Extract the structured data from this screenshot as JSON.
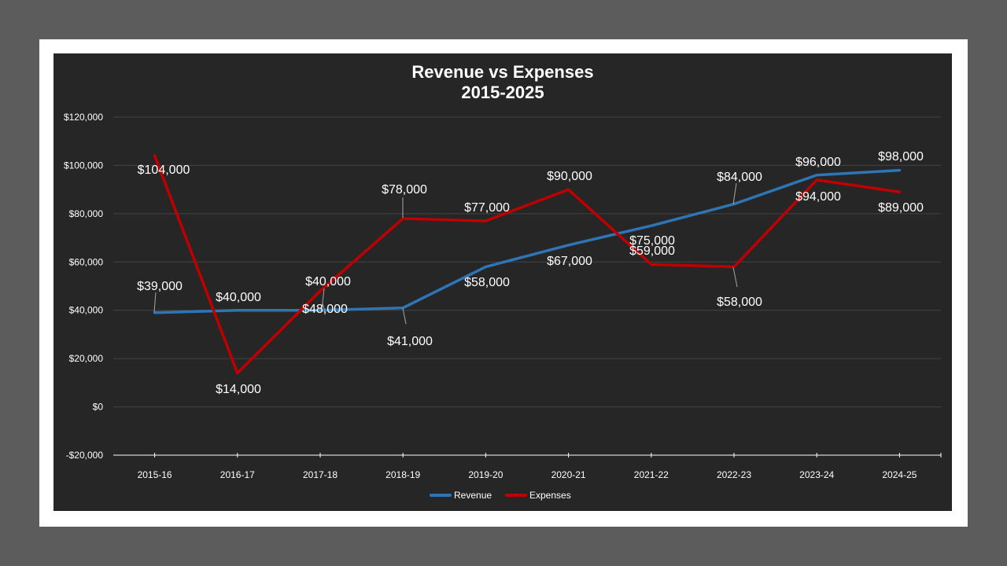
{
  "chart_data": {
    "type": "line",
    "title": "Revenue vs Expenses",
    "subtitle": "2015-2025",
    "xlabel": "",
    "ylabel": "",
    "categories": [
      "2015-16",
      "2016-17",
      "2017-18",
      "2018-19",
      "2019-20",
      "2020-21",
      "2021-22",
      "2022-23",
      "2023-24",
      "2024-25"
    ],
    "series": [
      {
        "name": "Revenue",
        "color": "#2e75b6",
        "values": [
          39000,
          40000,
          40000,
          41000,
          58000,
          67000,
          75000,
          84000,
          96000,
          98000
        ],
        "labels": [
          "$39,000",
          "$40,000",
          "$40,000",
          "$41,000",
          "$58,000",
          "$67,000",
          "$75,000",
          "$84,000",
          "$96,000",
          "$98,000"
        ]
      },
      {
        "name": "Expenses",
        "color": "#c00000",
        "values": [
          104000,
          14000,
          48000,
          78000,
          77000,
          90000,
          59000,
          58000,
          94000,
          89000
        ],
        "labels": [
          "$104,000",
          "$14,000",
          "$48,000",
          "$78,000",
          "$77,000",
          "$90,000",
          "$59,000",
          "$58,000",
          "$94,000",
          "$89,000"
        ]
      }
    ],
    "ylim": [
      -20000,
      120000
    ],
    "yticks": [
      "$120,000",
      "$100,000",
      "$80,000",
      "$60,000",
      "$40,000",
      "$20,000",
      "$0",
      "-$20,000"
    ],
    "ytick_values": [
      120000,
      100000,
      80000,
      60000,
      40000,
      20000,
      0,
      -20000
    ],
    "grid": true,
    "legend_position": "bottom",
    "background": "#262626"
  },
  "title_line1": "Revenue vs Expenses",
  "title_line2": "2015-2025"
}
